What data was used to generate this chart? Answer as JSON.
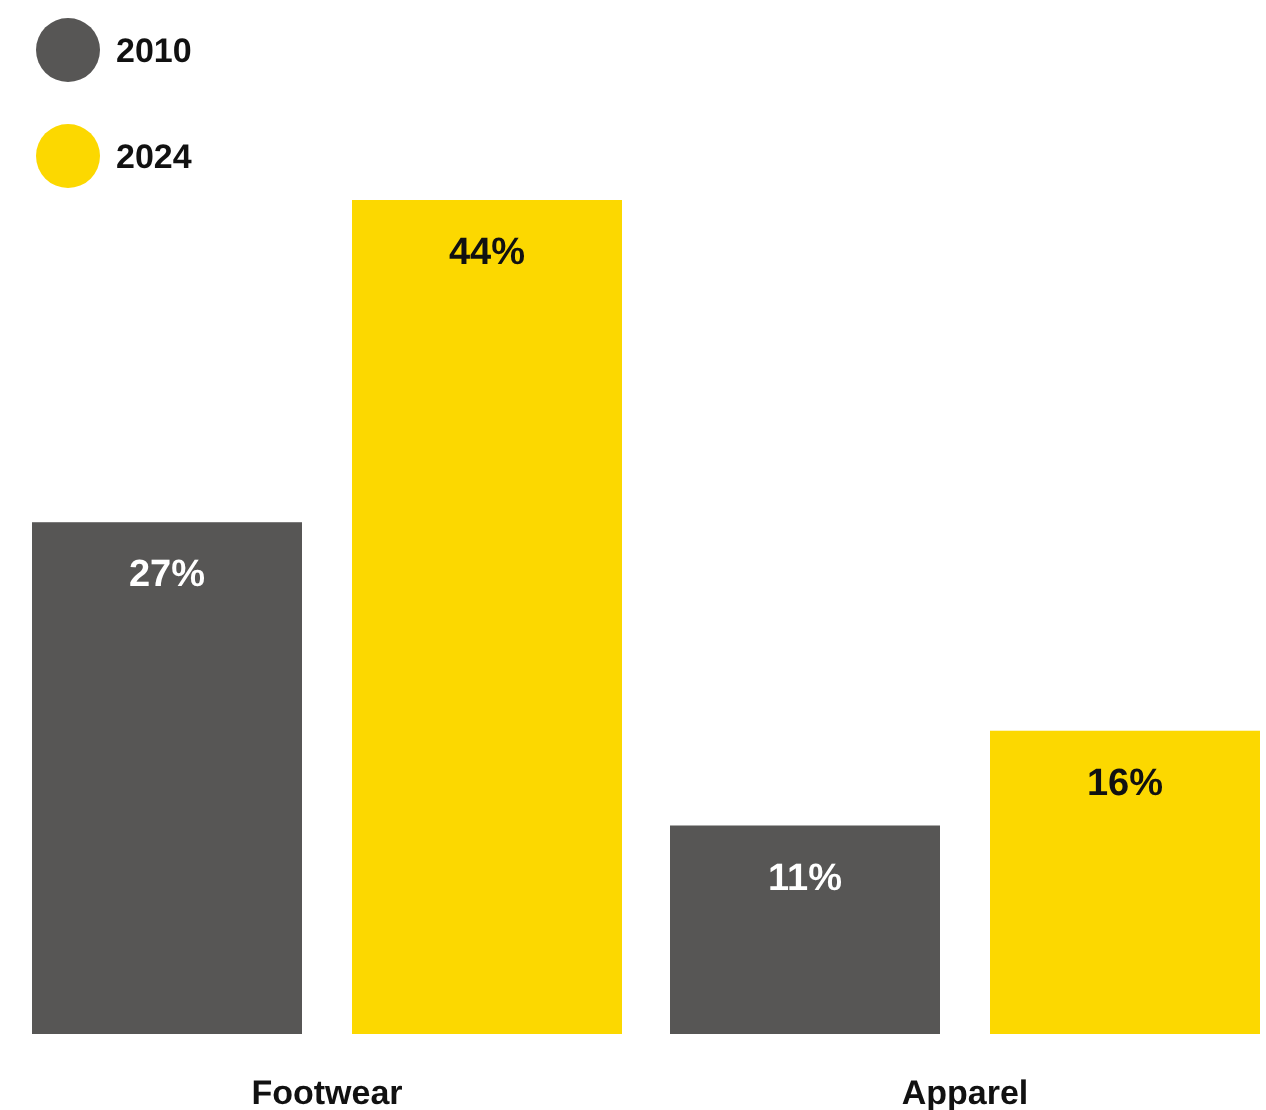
{
  "chart_data": {
    "type": "bar",
    "categories": [
      "Footwear",
      "Apparel"
    ],
    "legend": "top left",
    "series": [
      {
        "name": "2010",
        "color": "#575655",
        "values": [
          27,
          11
        ],
        "value_labels": [
          "27%",
          "11%"
        ]
      },
      {
        "name": "2024",
        "color": "#fcd800",
        "values": [
          44,
          16
        ],
        "value_labels": [
          "44%",
          "16%"
        ]
      }
    ]
  }
}
